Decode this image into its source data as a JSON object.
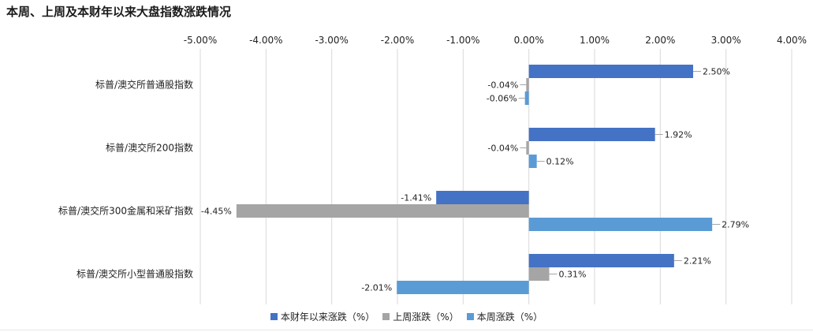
{
  "title": "本周、上周及本财年以来大盘指数涨跌情况",
  "chart_data": {
    "type": "bar",
    "orientation": "horizontal",
    "title": "本周、上周及本财年以来大盘指数涨跌情况",
    "xlim": [
      -5,
      4
    ],
    "x_ticks": [
      -5,
      -4,
      -3,
      -2,
      -1,
      0,
      1,
      2,
      3,
      4
    ],
    "x_tick_labels": [
      "-5.00%",
      "-4.00%",
      "-3.00%",
      "-2.00%",
      "-1.00%",
      "0.00%",
      "1.00%",
      "2.00%",
      "3.00%",
      "4.00%"
    ],
    "x_axis_position": "top",
    "grid": "vertical",
    "legend_position": "bottom",
    "categories": [
      "标普/澳交所普通股指数",
      "标普/澳交所200指数",
      "标普/澳交所300金属和采矿指数",
      "标普/澳交所小型普通股指数"
    ],
    "series": [
      {
        "name": "本财年以来涨跌（%）",
        "color": "#4472c4",
        "values": [
          2.5,
          1.92,
          -1.41,
          2.21
        ],
        "labels": [
          "2.50%",
          "1.92%",
          "-1.41%",
          "2.21%"
        ]
      },
      {
        "name": "上周涨跌（%）",
        "color": "#a5a5a5",
        "values": [
          -0.04,
          -0.04,
          -4.45,
          0.31
        ],
        "labels": [
          "-0.04%",
          "-0.04%",
          "-4.45%",
          "0.31%"
        ]
      },
      {
        "name": "本周涨跌（%）",
        "color": "#5b9bd5",
        "values": [
          -0.06,
          0.12,
          2.79,
          -2.01
        ],
        "labels": [
          "-0.06%",
          "0.12%",
          "2.79%",
          "-2.01%"
        ]
      }
    ]
  }
}
